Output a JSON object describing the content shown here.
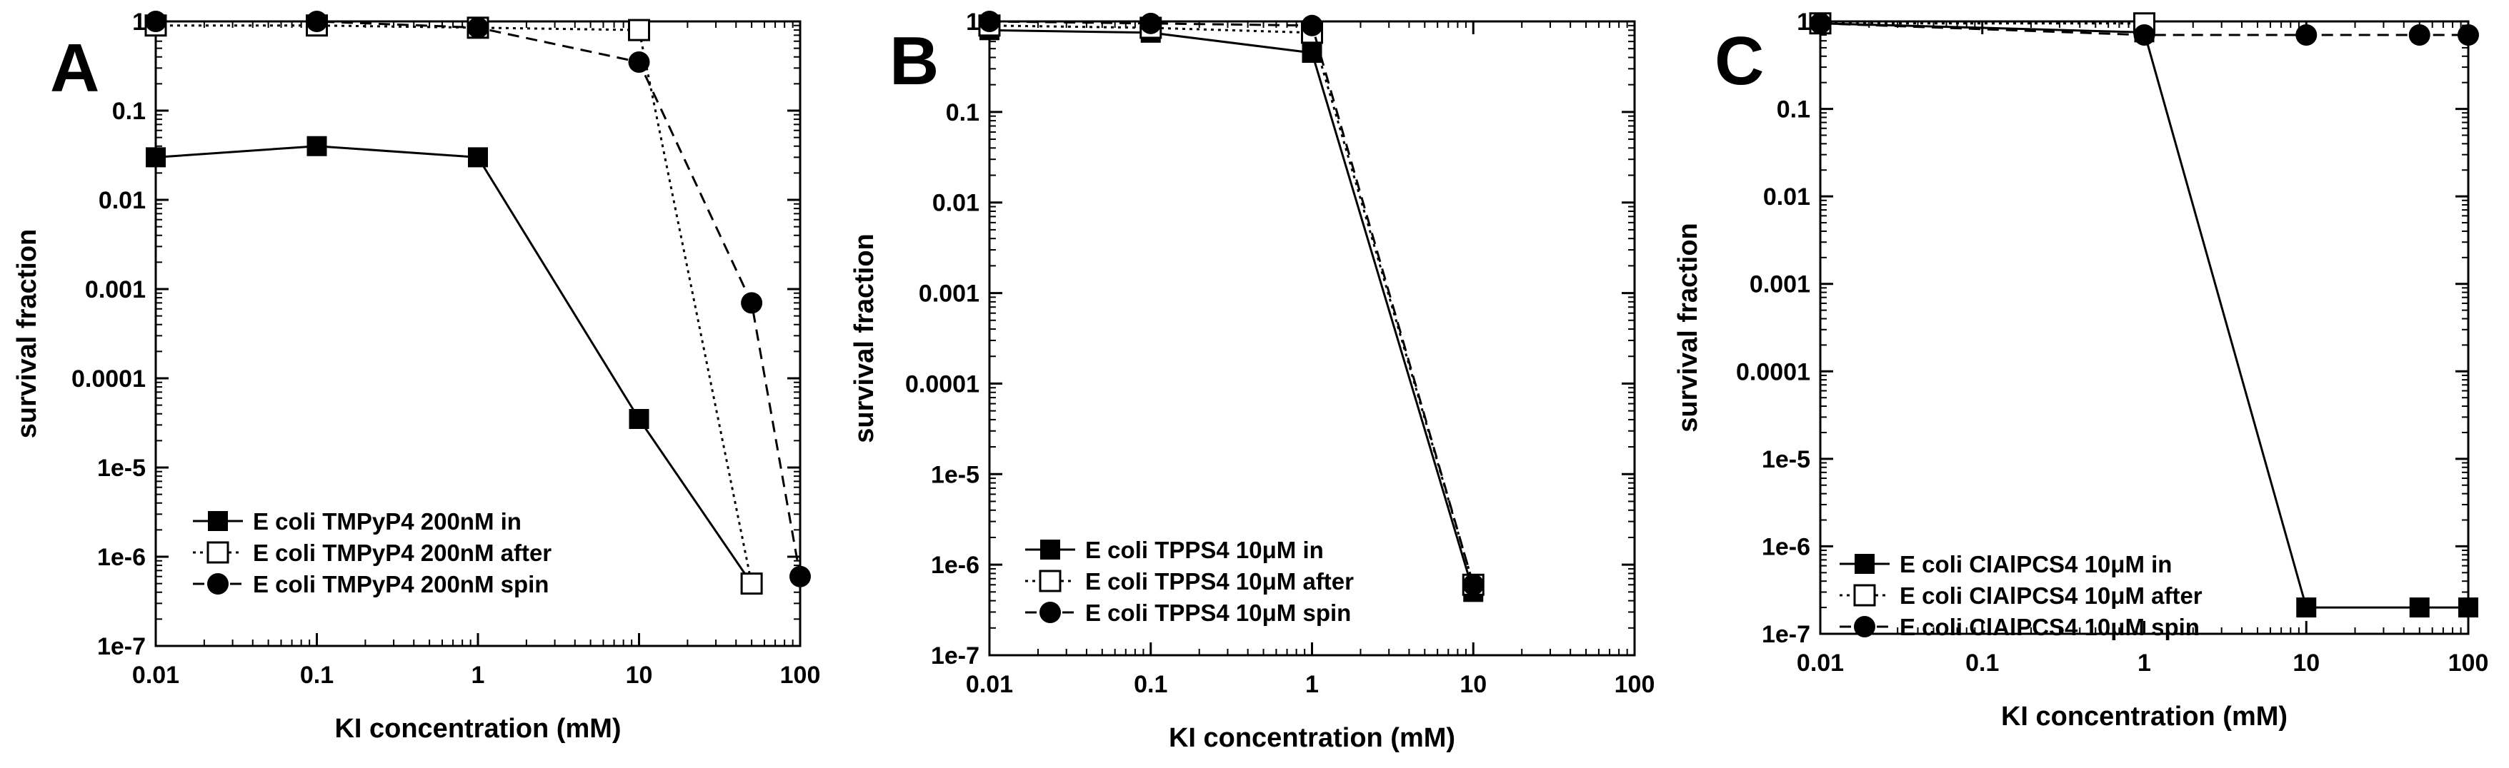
{
  "chart_data": [
    {
      "type": "line",
      "panel": "A",
      "xscale": "log",
      "yscale": "log",
      "xlim": [
        0.01,
        100
      ],
      "ylim": [
        1e-07,
        1
      ],
      "xlabel": "KI concentration (mM)",
      "ylabel": "survival fraction",
      "xticks": [
        "0.01",
        "0.1",
        "1",
        "10",
        "100"
      ],
      "yticks": [
        "1e-7",
        "1e-6",
        "1e-5",
        "0.0001",
        "0.001",
        "0.01",
        "0.1",
        "1"
      ],
      "legend_position": "bottom-left",
      "series": [
        {
          "name": "E coli TMPyP4 200nM in",
          "style": "solid",
          "marker": "filled-square",
          "x": [
            0.01,
            0.1,
            1,
            10,
            50
          ],
          "y": [
            0.03,
            0.04,
            0.03,
            3.5e-05,
            5e-07
          ]
        },
        {
          "name": "E coli TMPyP4 200nM after",
          "style": "dotted",
          "marker": "open-square",
          "x": [
            0.01,
            0.1,
            1,
            10,
            50
          ],
          "y": [
            0.9,
            0.9,
            0.85,
            0.8,
            5e-07
          ]
        },
        {
          "name": "E coli TMPyP4 200nM spin",
          "style": "dashed",
          "marker": "filled-circle",
          "x": [
            0.01,
            0.1,
            1,
            10,
            50,
            100
          ],
          "y": [
            1,
            1,
            0.85,
            0.35,
            0.0007,
            6e-07
          ]
        }
      ]
    },
    {
      "type": "line",
      "panel": "B",
      "xscale": "log",
      "yscale": "log",
      "xlim": [
        0.01,
        100
      ],
      "ylim": [
        1e-07,
        1
      ],
      "xlabel": "KI concentration (mM)",
      "ylabel": "survival fraction",
      "xticks": [
        "0.01",
        "0.1",
        "1",
        "10",
        "100"
      ],
      "yticks": [
        "1e-7",
        "1e-6",
        "1e-5",
        "0.0001",
        "0.001",
        "0.01",
        "0.1",
        "1"
      ],
      "legend_position": "bottom-left",
      "series": [
        {
          "name": "E coli TPPS4 10μM in",
          "style": "solid",
          "marker": "filled-square",
          "x": [
            0.01,
            0.1,
            1,
            10
          ],
          "y": [
            0.8,
            0.75,
            0.45,
            5e-07
          ]
        },
        {
          "name": "E coli TPPS4 10μM after",
          "style": "dotted",
          "marker": "open-square",
          "x": [
            0.01,
            0.1,
            1,
            10
          ],
          "y": [
            0.9,
            0.85,
            0.75,
            6e-07
          ]
        },
        {
          "name": "E coli TPPS4 10μM spin",
          "style": "dashed",
          "marker": "filled-circle",
          "x": [
            0.01,
            0.1,
            1,
            10
          ],
          "y": [
            1,
            0.95,
            0.9,
            6e-07
          ]
        }
      ]
    },
    {
      "type": "line",
      "panel": "C",
      "xscale": "log",
      "yscale": "log",
      "xlim": [
        0.01,
        100
      ],
      "ylim": [
        1e-07,
        1
      ],
      "xlabel": "KI concentration (mM)",
      "ylabel": "survival fraction",
      "xticks": [
        "0.01",
        "0.1",
        "1",
        "10",
        "100"
      ],
      "yticks": [
        "1e-7",
        "1e-6",
        "1e-5",
        "0.0001",
        "0.001",
        "0.01",
        "0.1",
        "1"
      ],
      "legend_position": "bottom-left",
      "series": [
        {
          "name": "E coli ClAlPCS4 10μM in",
          "style": "solid",
          "marker": "filled-square",
          "x": [
            0.01,
            1,
            10,
            50,
            100
          ],
          "y": [
            0.95,
            0.75,
            2e-07,
            2e-07,
            2e-07
          ]
        },
        {
          "name": "E coli ClAlPCS4 10μM after",
          "style": "dotted",
          "marker": "open-square",
          "x": [
            0.01,
            1
          ],
          "y": [
            0.95,
            0.95
          ]
        },
        {
          "name": "E coli ClAlPCS4 10μM spin",
          "style": "dashed",
          "marker": "filled-circle",
          "x": [
            0.01,
            1,
            10,
            50,
            100
          ],
          "y": [
            0.95,
            0.7,
            0.7,
            0.7,
            0.7
          ]
        }
      ]
    }
  ]
}
